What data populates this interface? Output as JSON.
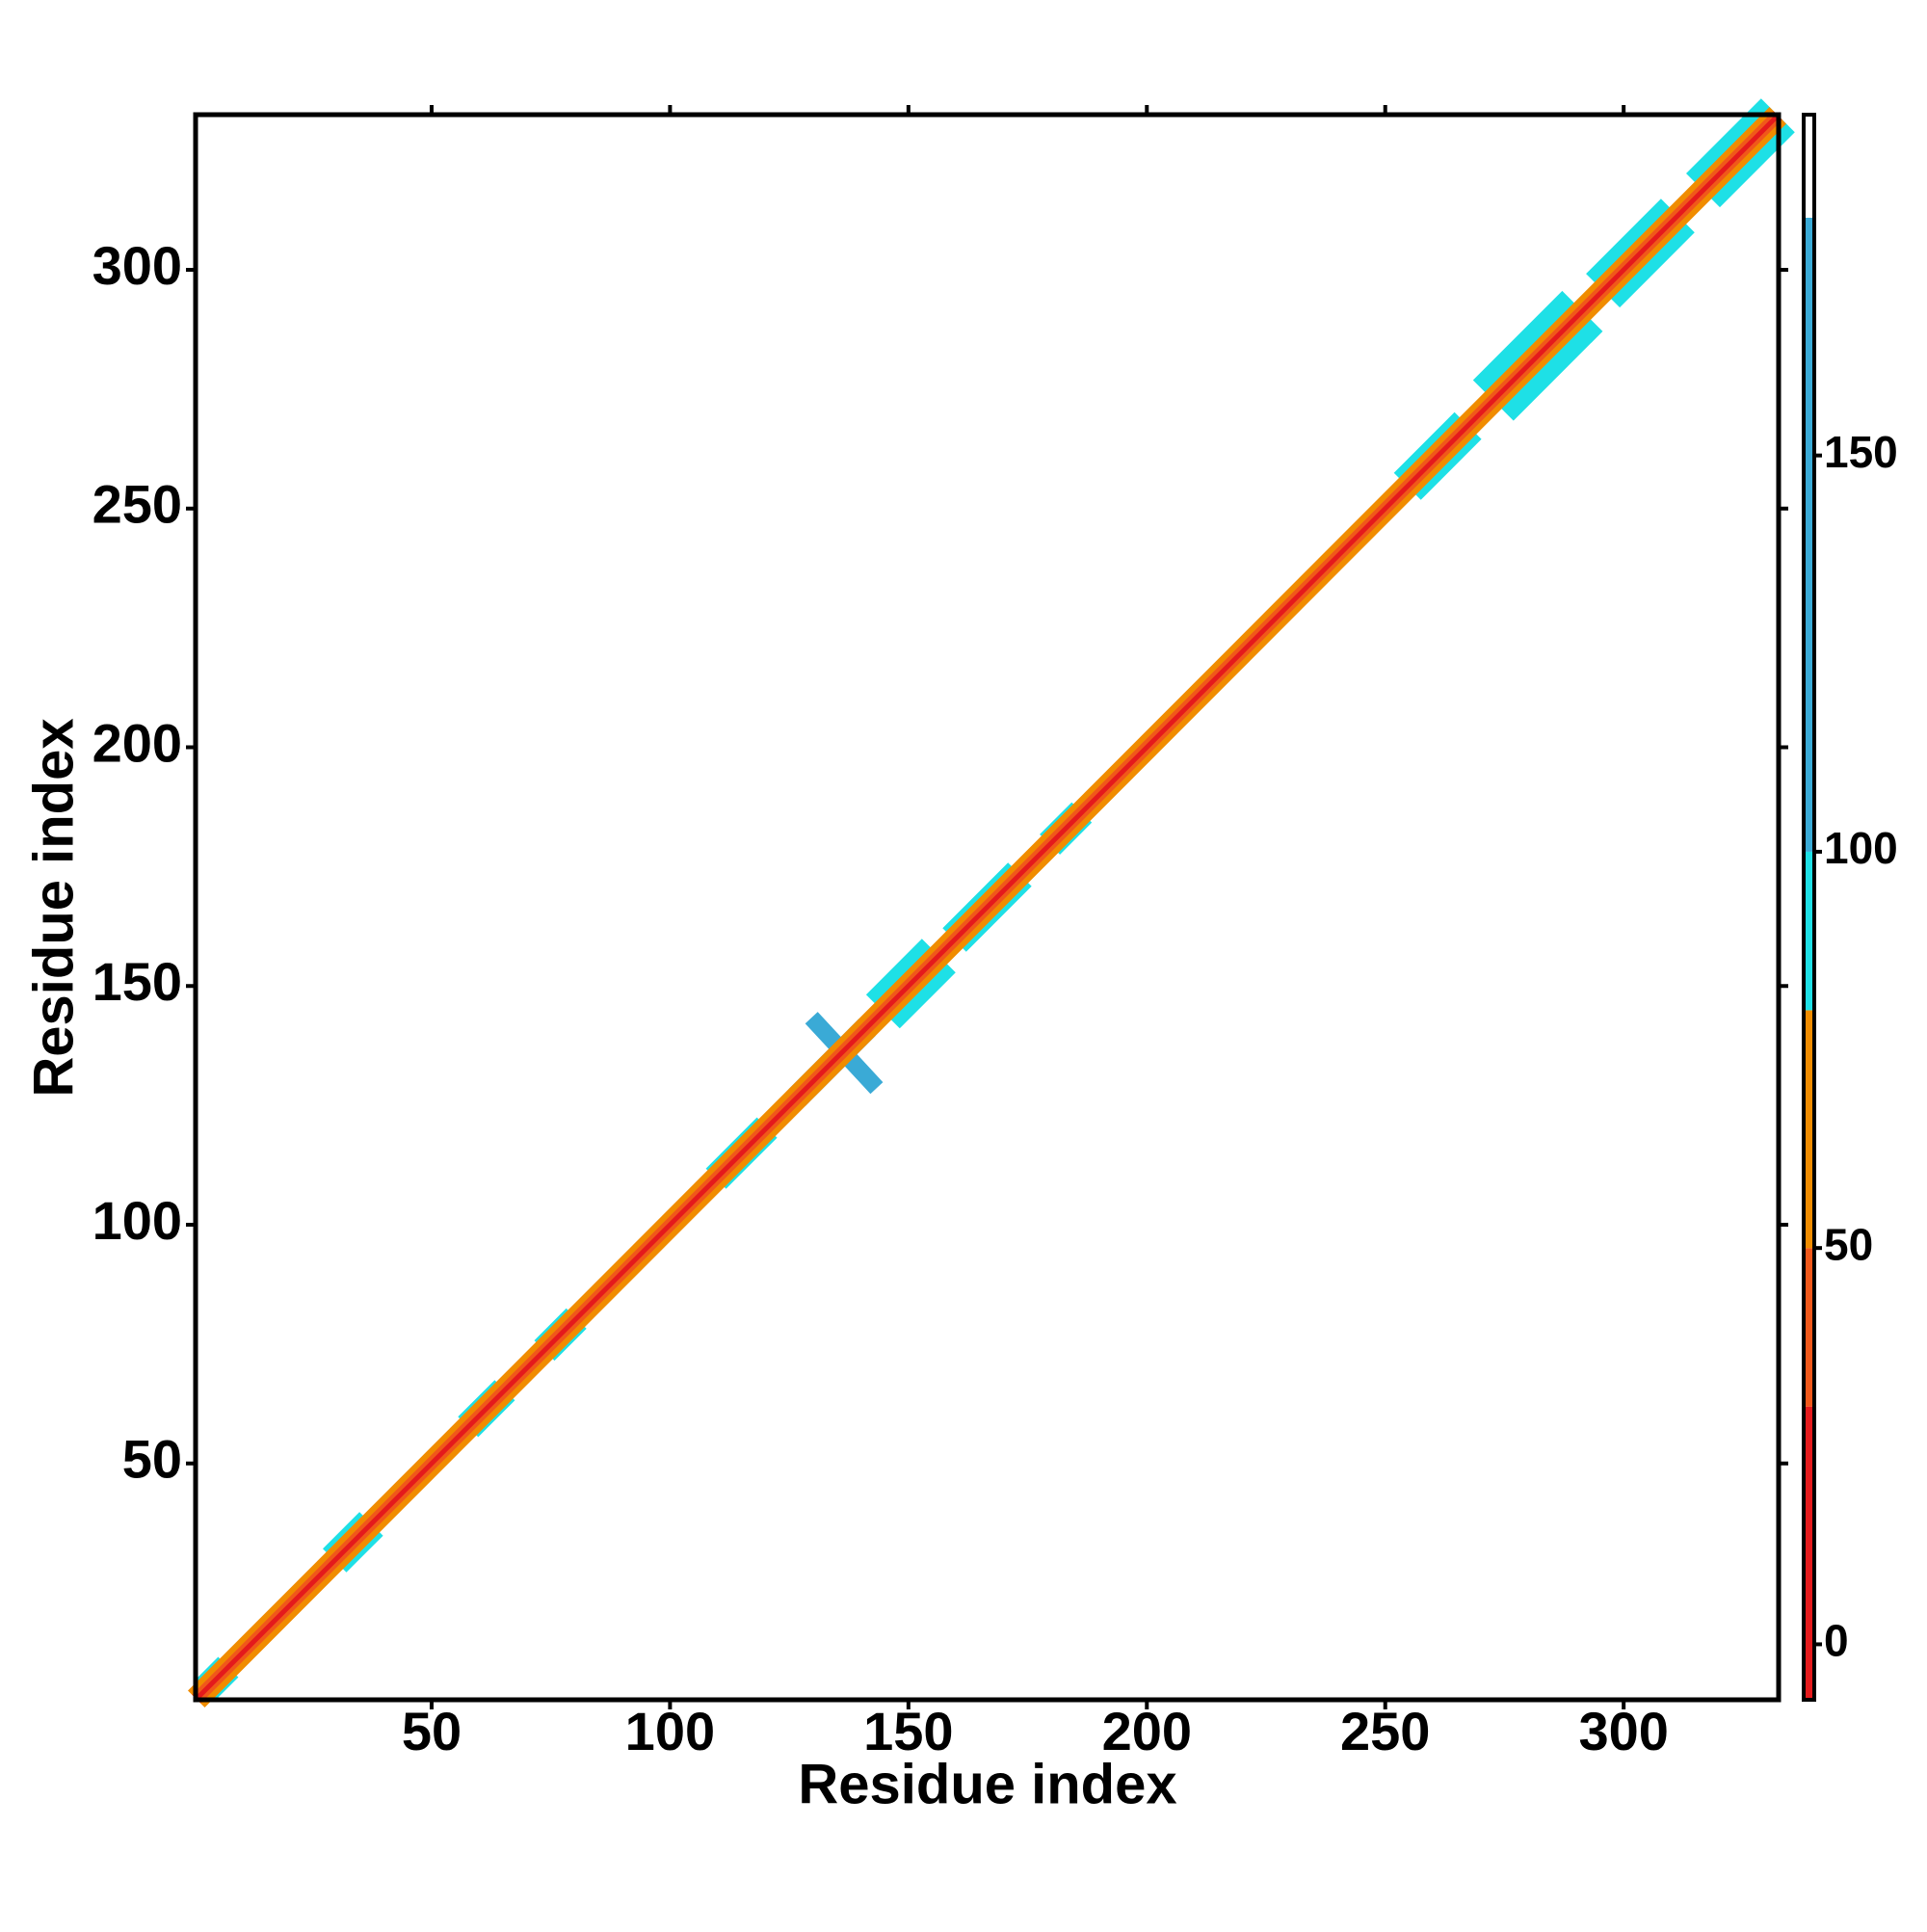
{
  "chart_data": {
    "type": "contact-map",
    "x_label": "Residue index",
    "y_label": "Residue index",
    "xlim": [
      0.5,
      332.5
    ],
    "ylim": [
      0.5,
      332.5
    ],
    "xticks": [
      50,
      100,
      150,
      200,
      250,
      300
    ],
    "yticks": [
      50,
      100,
      150,
      200,
      250,
      300
    ],
    "colorbar": {
      "lim": [
        -7,
        193
      ],
      "ticks": [
        0,
        50,
        100,
        150
      ],
      "bins": [
        -7,
        30,
        50,
        80,
        100,
        180,
        193
      ],
      "colors": [
        "#e41a1c",
        "#f0581a",
        "#f08c00",
        "#1ee0e6",
        "#3aaad6",
        "#ffffff"
      ]
    },
    "bands": [
      {
        "x": [
          3,
          7
        ],
        "y": [
          3,
          7
        ],
        "width": 3,
        "value": 90
      },
      {
        "x": [
          30,
          37
        ],
        "y": [
          30,
          37
        ],
        "width": 3.5,
        "value": 90
      },
      {
        "x": [
          58,
          65
        ],
        "y": [
          58,
          65
        ],
        "width": 3,
        "value": 90
      },
      {
        "x": [
          74,
          80
        ],
        "y": [
          74,
          80
        ],
        "width": 3,
        "value": 90
      },
      {
        "x": [
          110,
          120
        ],
        "y": [
          110,
          120
        ],
        "width": 3,
        "value": 90
      },
      {
        "x": [
          145,
          156
        ],
        "y": [
          145,
          156
        ],
        "width": 5,
        "value": 90
      },
      {
        "x": [
          160,
          173
        ],
        "y": [
          160,
          173
        ],
        "width": 3.5,
        "value": 90
      },
      {
        "x": [
          180,
          186
        ],
        "y": [
          180,
          186
        ],
        "width": 3,
        "value": 90
      },
      {
        "x": [
          255,
          267
        ],
        "y": [
          255,
          267
        ],
        "width": 4,
        "value": 90
      },
      {
        "x": [
          273,
          291
        ],
        "y": [
          273,
          291
        ],
        "width": 6,
        "value": 90
      },
      {
        "x": [
          296,
          311
        ],
        "y": [
          296,
          311
        ],
        "width": 5,
        "value": 90
      },
      {
        "x": [
          317,
          332
        ],
        "y": [
          317,
          332
        ],
        "width": 5,
        "value": 90
      },
      {
        "x": [
          127,
          141
        ],
        "y": [
          127,
          141
        ],
        "width": 2.5,
        "value": 140
      },
      {
        "x": [
          130,
          143
        ],
        "y": [
          143,
          129
        ],
        "width": 1.8,
        "value": 140
      },
      {
        "x": [
          1,
          332
        ],
        "y": [
          1,
          332
        ],
        "width": 2.5,
        "value": 60
      },
      {
        "x": [
          1,
          332
        ],
        "y": [
          1,
          332
        ],
        "width": 1.3,
        "value": 40
      },
      {
        "x": [
          1,
          332
        ],
        "y": [
          1,
          332
        ],
        "width": 0.5,
        "value": 10
      }
    ]
  }
}
